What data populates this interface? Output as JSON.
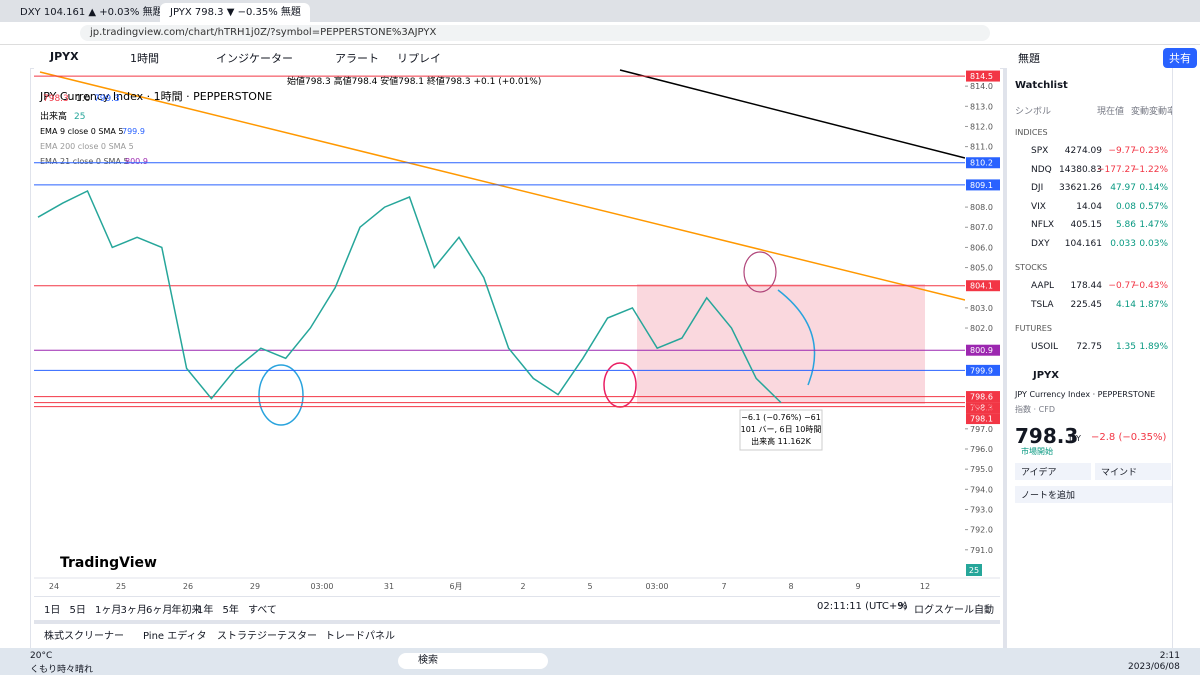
{
  "browser": {
    "tabs": [
      "DXY 104.161 ▲ +0.03% 無題",
      "JPYX 798.3 ▼ −0.35% 無題"
    ],
    "url": "jp.tradingview.com/chart/hTRH1j0Z/?symbol=PEPPERSTONE%3AJPYX"
  },
  "toolbar": {
    "symbol": "JPYX",
    "interval": "1時間",
    "indicators": "インジケーター",
    "alert": "アラート",
    "replay": "リプレイ",
    "layout": "無題",
    "share": "共有"
  },
  "legend": {
    "title": "JPY Currency Index · 1時間 · PEPPERSTONE",
    "ohlc": "始値798.3 高値798.4 安値798.1 終値798.3 +0.1 (+0.01%)",
    "bid": "798.3",
    "spread": "1.0",
    "ask": "799.3",
    "volume_label": "出来高",
    "volume": "25",
    "ema9": "EMA 9 close 0 SMA 5",
    "ema9_value": "799.9",
    "ema200": "EMA 200 close 0 SMA 5",
    "ema21": "EMA 21 close 0 SMA 5",
    "ema21_value": "800.9"
  },
  "tooltip": [
    "−6.1 (−0.76%) −61",
    "101 バー, 6日 10時間",
    "出来高 11.162K"
  ],
  "chart_data": {
    "type": "line",
    "color": "#26a69a",
    "values": [
      807.5,
      808.2,
      808.8,
      806.0,
      806.5,
      806.0,
      800.0,
      798.5,
      800.0,
      801.0,
      800.5,
      802.0,
      804.0,
      807.0,
      808.0,
      808.5,
      805.0,
      806.5,
      804.5,
      801.0,
      799.5,
      798.7,
      800.5,
      802.5,
      803.0,
      801.0,
      801.5,
      803.5,
      802.0,
      799.5,
      798.3
    ],
    "ylim": [
      789.6,
      814.9
    ],
    "yticks": [
      {
        "value": 814,
        "label": "814.0"
      },
      {
        "value": 813,
        "label": "813.0"
      },
      {
        "value": 812,
        "label": "812.0"
      },
      {
        "value": 811,
        "label": "811.0"
      },
      {
        "value": 808,
        "label": "808.0"
      },
      {
        "value": 807,
        "label": "807.0"
      },
      {
        "value": 806,
        "label": "806.0"
      },
      {
        "value": 805,
        "label": "805.0"
      },
      {
        "value": 803,
        "label": "803.0"
      },
      {
        "value": 802,
        "label": "802.0"
      },
      {
        "value": 797,
        "label": "797.0"
      },
      {
        "value": 796,
        "label": "796.0"
      },
      {
        "value": 795,
        "label": "795.0"
      },
      {
        "value": 794,
        "label": "794.0"
      },
      {
        "value": 793,
        "label": "793.0"
      },
      {
        "value": 792,
        "label": "792.0"
      },
      {
        "value": 791,
        "label": "791.0"
      }
    ],
    "time_labels": [
      "24",
      "25",
      "26",
      "29",
      "03:00",
      "31",
      "6月",
      "2",
      "5",
      "03:00",
      "7",
      "8",
      "9",
      "12"
    ],
    "price_levels": [
      {
        "value": 814.5,
        "color": "#f23645"
      },
      {
        "value": 810.2,
        "color": "#2962ff"
      },
      {
        "value": 809.1,
        "color": "#2962ff"
      },
      {
        "value": 804.1,
        "color": "#f23645"
      },
      {
        "value": 800.9,
        "color": "#9c27b0"
      },
      {
        "value": 799.9,
        "color": "#2962ff"
      },
      {
        "value": 798.6,
        "color": "#f23645"
      },
      {
        "value": 798.3,
        "color": "#f23645"
      },
      {
        "value": 798.1,
        "color": "#f23645"
      }
    ],
    "countdown": "48:49",
    "volume_axis": "25",
    "watermark": "TradingView"
  },
  "bottom_bar": {
    "ranges": [
      "1日",
      "5日",
      "1ヶ月",
      "3ヶ月",
      "6ヶ月",
      "年初来",
      "1年",
      "5年",
      "すべて"
    ],
    "clock": "02:11:11 (UTC+9)",
    "percent": "%",
    "log": "ログスケール",
    "auto": "自動"
  },
  "panel_tabs": [
    "株式スクリーナー",
    "Pine エディタ",
    "ストラテジーテスター",
    "トレードパネル"
  ],
  "watchlist": {
    "title": "Watchlist",
    "columns": [
      "シンボル",
      "現在値",
      "変動",
      "変動率"
    ],
    "groups": [
      {
        "name": "INDICES",
        "rows": [
          [
            "SPX",
            "4274.09",
            "−9.77",
            "−0.23%"
          ],
          [
            "NDQ",
            "14380.83",
            "−177.27",
            "−1.22%"
          ],
          [
            "DJI",
            "33621.26",
            "47.97",
            "0.14%"
          ],
          [
            "VIX",
            "14.04",
            "0.08",
            "0.57%"
          ],
          [
            "NFLX",
            "405.15",
            "5.86",
            "1.47%"
          ],
          [
            "DXY",
            "104.161",
            "0.033",
            "0.03%"
          ]
        ]
      },
      {
        "name": "STOCKS",
        "rows": [
          [
            "AAPL",
            "178.44",
            "−0.77",
            "−0.43%"
          ],
          [
            "TSLA",
            "225.45",
            "4.14",
            "1.87%"
          ]
        ]
      },
      {
        "name": "FUTURES",
        "rows": [
          [
            "USOIL",
            "72.75",
            "1.35",
            "1.89%"
          ]
        ]
      }
    ]
  },
  "detail": {
    "symbol": "JPYX",
    "name": "JPY Currency Index · PEPPERSTONE",
    "kind": "指数 · CFD",
    "price": "798.3",
    "currency": "JPY",
    "change": "−2.8 (−0.35%)",
    "status": "市場開始",
    "ideas": "アイデア",
    "minds": "マインド",
    "note": "ノートを追加"
  },
  "taskbar": {
    "temp": "20°C",
    "weather": "くもり時々晴れ",
    "search": "検索",
    "time": "2:11",
    "date": "2023/06/08"
  }
}
